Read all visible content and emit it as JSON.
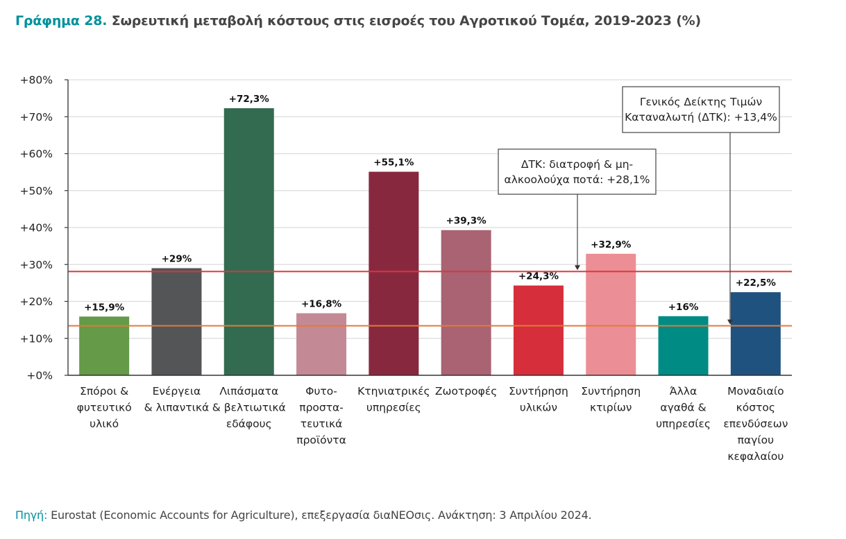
{
  "title": {
    "number": "Γράφημα 28.",
    "text": "Σωρευτική μεταβολή κόστους στις εισροές του Αγροτικού Τομέα, 2019-2023 (%)"
  },
  "source": {
    "label": "Πηγή:",
    "text": "Eurostat (Economic Accounts for Agriculture), επεξεργασία διαΝΕΟσις. Ανάκτηση: 3 Απριλίου 2024."
  },
  "colors": {
    "accent": "#00919c",
    "reference_red": "#d6373f",
    "reference_orange": "#e07b3a"
  },
  "chart_data": {
    "type": "bar",
    "title": "Σωρευτική μεταβολή κόστους στις εισροές του Αγροτικού Τομέα, 2019-2023 (%)",
    "xlabel": "",
    "ylabel": "",
    "ylim": [
      0,
      80
    ],
    "yticks": [
      0,
      10,
      20,
      30,
      40,
      50,
      60,
      70,
      80
    ],
    "ytick_labels": [
      "+0%",
      "+10%",
      "+20%",
      "+30%",
      "+40%",
      "+50%",
      "+60%",
      "+70%",
      "+80%"
    ],
    "grid": true,
    "categories": [
      [
        "Σπόροι &",
        "φυτευτικό",
        "υλικό"
      ],
      [
        "Ενέργεια",
        "& λιπαντικά"
      ],
      [
        "Λιπάσματα",
        "& βελτιωτικά",
        "εδάφους"
      ],
      [
        "Φυτο-",
        "προστα-",
        "τευτικά",
        "προϊόντα"
      ],
      [
        "Κτηνιατρικές",
        "υπηρεσίες"
      ],
      [
        "Ζωοτροφές"
      ],
      [
        "Συντήρηση",
        "υλικών"
      ],
      [
        "Συντήρηση",
        "κτιρίων"
      ],
      [
        "Άλλα",
        "αγαθά &",
        "υπηρεσίες"
      ],
      [
        "Μοναδιαίο",
        "κόστος",
        "επενδύσεων",
        "παγίου",
        "κεφαλαίου"
      ]
    ],
    "values": [
      15.9,
      29.0,
      72.3,
      16.8,
      55.1,
      39.3,
      24.3,
      32.9,
      16.0,
      22.5
    ],
    "value_labels": [
      "+15,9%",
      "+29%",
      "+72,3%",
      "+16,8%",
      "+55,1%",
      "+39,3%",
      "+24,3%",
      "+32,9%",
      "+16%",
      "+22,5%"
    ],
    "bar_colors": [
      "#649a48",
      "#545557",
      "#336b51",
      "#c38a95",
      "#88283e",
      "#a96373",
      "#d62e3a",
      "#ec8e95",
      "#008b84",
      "#20527f"
    ],
    "reference_lines": [
      {
        "name": "ΔΤΚ: διατροφή & μη-αλκοολούχα ποτά",
        "value": 28.1,
        "color": "#d6373f",
        "annotation": [
          "ΔΤΚ: διατροφή & μη-",
          "αλκοολούχα ποτά: +28,1%"
        ]
      },
      {
        "name": "Γενικός Δείκτης Τιμών Καταναλωτή (ΔΤΚ)",
        "value": 13.4,
        "color": "#e07b3a",
        "annotation": [
          "Γενικός Δείκτης Τιμών",
          "Καταναλωτή (ΔΤΚ): +13,4%"
        ]
      }
    ]
  }
}
